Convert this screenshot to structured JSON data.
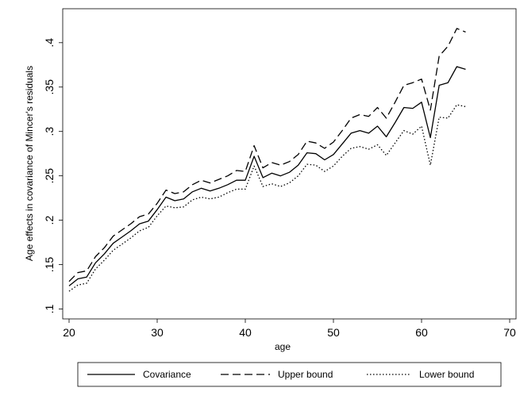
{
  "chart_data": {
    "type": "line",
    "title": "",
    "xlabel": "age",
    "ylabel": "Age effects in covariance of Mincer's residuals",
    "xlim": [
      20,
      70
    ],
    "ylim": [
      0.1,
      0.4
    ],
    "xticks": [
      20,
      30,
      40,
      50,
      60,
      70
    ],
    "yticks": [
      0.1,
      0.15,
      0.2,
      0.25,
      0.3,
      0.35,
      0.4
    ],
    "ytick_labels": [
      ".1",
      ".15",
      ".2",
      ".25",
      ".3",
      ".35",
      ".4"
    ],
    "grid": false,
    "legend_position": "bottom",
    "x": [
      20,
      21,
      22,
      23,
      24,
      25,
      26,
      27,
      28,
      29,
      30,
      31,
      32,
      33,
      34,
      35,
      36,
      37,
      38,
      39,
      40,
      41,
      42,
      43,
      44,
      45,
      46,
      47,
      48,
      49,
      50,
      51,
      52,
      53,
      54,
      55,
      56,
      57,
      58,
      59,
      60,
      61,
      62,
      63,
      64,
      65
    ],
    "series": [
      {
        "name": "Covariance",
        "dash": "solid",
        "values": [
          0.126,
          0.134,
          0.136,
          0.152,
          0.162,
          0.174,
          0.181,
          0.188,
          0.196,
          0.199,
          0.212,
          0.226,
          0.222,
          0.224,
          0.232,
          0.236,
          0.233,
          0.236,
          0.24,
          0.245,
          0.245,
          0.272,
          0.248,
          0.253,
          0.25,
          0.254,
          0.262,
          0.276,
          0.275,
          0.268,
          0.274,
          0.286,
          0.298,
          0.301,
          0.298,
          0.306,
          0.294,
          0.31,
          0.327,
          0.326,
          0.333,
          0.293,
          0.352,
          0.355,
          0.373,
          0.37
        ]
      },
      {
        "name": "Upper bound",
        "dash": "long-dash",
        "values": [
          0.131,
          0.141,
          0.143,
          0.159,
          0.169,
          0.182,
          0.189,
          0.196,
          0.204,
          0.207,
          0.219,
          0.234,
          0.23,
          0.232,
          0.24,
          0.245,
          0.242,
          0.246,
          0.25,
          0.256,
          0.255,
          0.284,
          0.259,
          0.265,
          0.262,
          0.266,
          0.274,
          0.289,
          0.287,
          0.281,
          0.288,
          0.301,
          0.315,
          0.319,
          0.317,
          0.327,
          0.315,
          0.333,
          0.352,
          0.355,
          0.359,
          0.324,
          0.385,
          0.396,
          0.416,
          0.412
        ]
      },
      {
        "name": "Lower bound",
        "dash": "dotted",
        "values": [
          0.12,
          0.127,
          0.129,
          0.145,
          0.155,
          0.166,
          0.173,
          0.18,
          0.188,
          0.192,
          0.205,
          0.216,
          0.214,
          0.215,
          0.223,
          0.226,
          0.224,
          0.226,
          0.231,
          0.235,
          0.235,
          0.261,
          0.238,
          0.241,
          0.238,
          0.242,
          0.25,
          0.263,
          0.262,
          0.255,
          0.261,
          0.272,
          0.281,
          0.283,
          0.28,
          0.285,
          0.273,
          0.287,
          0.301,
          0.297,
          0.306,
          0.262,
          0.316,
          0.315,
          0.33,
          0.328
        ]
      }
    ]
  },
  "colors": {
    "background": "#ffffff",
    "plot_region": "#ffffff",
    "outer_region": "#ffffff",
    "line": "#000000"
  }
}
